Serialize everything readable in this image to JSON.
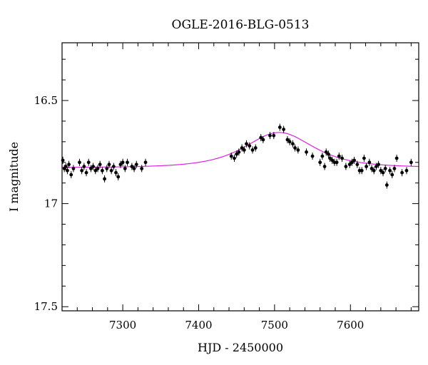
{
  "chart_data": {
    "type": "scatter",
    "title": "OGLE-2016-BLG-0513",
    "xlabel": "HJD - 2450000",
    "ylabel": "I magnitude",
    "xlim": [
      7220,
      7690
    ],
    "ylim": [
      17.52,
      16.22
    ],
    "y_inverted": true,
    "x_ticks": [
      7300,
      7400,
      7500,
      7600
    ],
    "x_tick_labels": [
      "7300",
      "7400",
      "7500",
      "7600"
    ],
    "y_ticks": [
      16.5,
      17,
      17.5
    ],
    "y_tick_labels": [
      "16.5",
      "17",
      "17.5"
    ],
    "grid": false,
    "colors": {
      "data": "#000000",
      "model": "#e020e0"
    },
    "model": {
      "baseline": 16.825,
      "peak_mag": 16.655,
      "t0": 7506,
      "tE": 45
    },
    "series": [
      {
        "kind": "points",
        "x": [
          7221,
          7223,
          7225,
          7227,
          7229,
          7232,
          7235,
          7243,
          7246,
          7249,
          7252,
          7255,
          7258,
          7261,
          7264,
          7267,
          7270,
          7273,
          7276,
          7279,
          7282,
          7285,
          7288,
          7291,
          7294,
          7297,
          7300,
          7303,
          7306,
          7312,
          7315,
          7318,
          7325,
          7330,
          7443,
          7447,
          7450,
          7453,
          7457,
          7460,
          7463,
          7467,
          7471,
          7475,
          7482,
          7485,
          7494,
          7499,
          7507,
          7512,
          7517,
          7520,
          7524,
          7527,
          7531,
          7542,
          7550,
          7560,
          7563,
          7566,
          7568,
          7571,
          7573,
          7576,
          7579,
          7582,
          7585,
          7589,
          7594,
          7599,
          7602,
          7605,
          7609,
          7612,
          7615,
          7618,
          7621,
          7625,
          7628,
          7631,
          7634,
          7637,
          7640,
          7643,
          7646,
          7648,
          7652,
          7655,
          7658,
          7661,
          7668,
          7674,
          7680
        ],
        "y": [
          16.79,
          16.83,
          16.82,
          16.84,
          16.81,
          16.86,
          16.83,
          16.8,
          16.84,
          16.82,
          16.85,
          16.8,
          16.83,
          16.82,
          16.84,
          16.83,
          16.81,
          16.84,
          16.88,
          16.83,
          16.81,
          16.84,
          16.82,
          16.85,
          16.87,
          16.81,
          16.8,
          16.83,
          16.8,
          16.82,
          16.83,
          16.81,
          16.83,
          16.8,
          16.77,
          16.78,
          16.76,
          16.75,
          16.73,
          16.74,
          16.71,
          16.72,
          16.74,
          16.73,
          16.68,
          16.69,
          16.67,
          16.67,
          16.63,
          16.64,
          16.69,
          16.7,
          16.71,
          16.73,
          16.74,
          16.75,
          16.77,
          16.8,
          16.77,
          16.82,
          16.75,
          16.76,
          16.78,
          16.79,
          16.8,
          16.8,
          16.77,
          16.78,
          16.82,
          16.81,
          16.8,
          16.79,
          16.81,
          16.84,
          16.84,
          16.78,
          16.82,
          16.8,
          16.83,
          16.84,
          16.82,
          16.81,
          16.84,
          16.85,
          16.83,
          16.91,
          16.84,
          16.86,
          16.83,
          16.78,
          16.85,
          16.84,
          16.8
        ]
      }
    ]
  }
}
